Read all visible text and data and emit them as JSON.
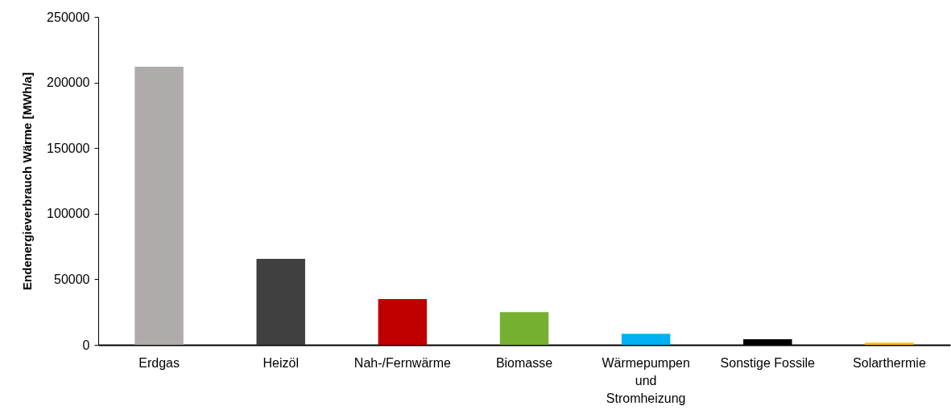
{
  "chart_data": {
    "type": "bar",
    "ylabel": "Endenergieverbrauch Wärme [MWh/a]",
    "categories": [
      "Erdgas",
      "Heizöl",
      "Nah-/Fernwärme",
      "Biomasse",
      "Wärmepumpen und Stromheizung",
      "Sonstige Fossile",
      "Solarthermie"
    ],
    "values": [
      212000,
      65500,
      35000,
      25000,
      8500,
      4300,
      1700
    ],
    "colors": [
      "#afabaa",
      "#404040",
      "#c00000",
      "#76b031",
      "#00b0f0",
      "#000000",
      "#ffc000"
    ],
    "ylim": [
      0,
      250000
    ],
    "yticks": [
      0,
      50000,
      100000,
      150000,
      200000,
      250000
    ],
    "grid": false
  }
}
